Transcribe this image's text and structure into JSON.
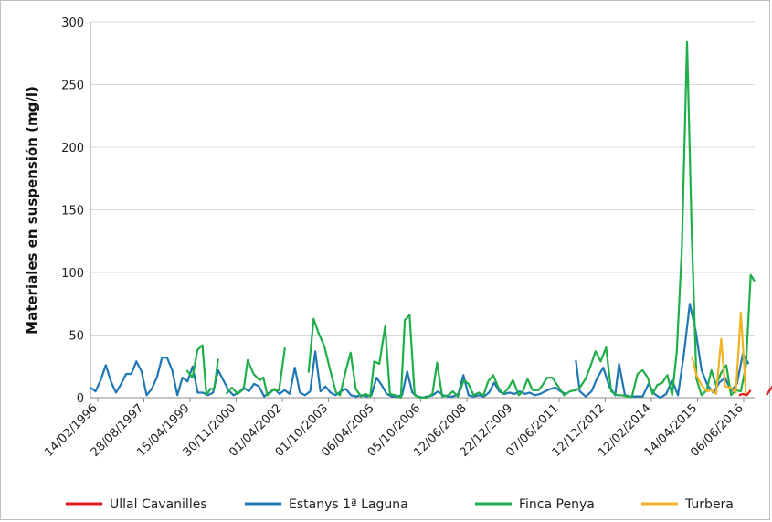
{
  "chart_data": {
    "type": "line",
    "title": "",
    "xlabel": "",
    "ylabel": "Materiales en suspensión (mg/l)",
    "ylim": [
      0,
      300
    ],
    "yticks": [
      0,
      50,
      100,
      150,
      200,
      250,
      300
    ],
    "grid": "horizontal",
    "legend_position": "bottom",
    "x_tick_labels": [
      "14/02/1996",
      "28/08/1997",
      "15/04/1999",
      "30/11/2000",
      "01/04/2002",
      "01/10/2003",
      "06/04/2005",
      "05/10/2006",
      "12/06/2008",
      "22/12/2009",
      "07/06/2011",
      "12/12/2012",
      "12/02/2014",
      "14/04/2015",
      "06/06/2016"
    ],
    "series": [
      {
        "name": "Ullal Cavanilles",
        "color": "#e31a1c",
        "segments": [
          [
            [
              16.5,
              2
            ],
            [
              16.6,
              3
            ],
            [
              16.7,
              2
            ],
            [
              16.8,
              6
            ]
          ],
          [
            [
              17.2,
              2
            ],
            [
              17.35,
              9
            ],
            [
              17.5,
              2
            ],
            [
              17.6,
              1
            ]
          ],
          [
            [
              17.95,
              1
            ],
            [
              18.1,
              9
            ],
            [
              18.25,
              3
            ],
            [
              18.35,
              1
            ]
          ],
          [
            [
              18.55,
              1
            ],
            [
              18.7,
              0
            ]
          ],
          [
            [
              19.35,
              5
            ],
            [
              19.55,
              6
            ],
            [
              19.7,
              9
            ],
            [
              19.85,
              7
            ],
            [
              19.95,
              8
            ],
            [
              20.05,
              16
            ],
            [
              20.15,
              3
            ],
            [
              20.3,
              8
            ],
            [
              20.45,
              12
            ],
            [
              20.6,
              21
            ]
          ]
        ]
      },
      {
        "name": "Estanys 1ª Laguna",
        "color": "#1f78b4",
        "segments": [
          [
            [
              0.0,
              8
            ],
            [
              0.13,
              5
            ],
            [
              0.26,
              14
            ],
            [
              0.39,
              26
            ],
            [
              0.52,
              13
            ],
            [
              0.65,
              4
            ],
            [
              0.78,
              11
            ],
            [
              0.91,
              19
            ],
            [
              1.04,
              19
            ],
            [
              1.17,
              29
            ],
            [
              1.3,
              21
            ],
            [
              1.43,
              2
            ],
            [
              1.56,
              7
            ],
            [
              1.69,
              16
            ],
            [
              1.82,
              32
            ],
            [
              1.95,
              32
            ],
            [
              2.08,
              22
            ],
            [
              2.21,
              2
            ],
            [
              2.34,
              16
            ],
            [
              2.47,
              13
            ],
            [
              2.6,
              25
            ],
            [
              2.73,
              4
            ],
            [
              2.86,
              4
            ],
            [
              2.99,
              2
            ],
            [
              3.12,
              4
            ],
            [
              3.25,
              22
            ],
            [
              3.38,
              14
            ],
            [
              3.51,
              6
            ],
            [
              3.64,
              2
            ],
            [
              3.77,
              4
            ],
            [
              3.9,
              8
            ],
            [
              4.03,
              5
            ],
            [
              4.16,
              11
            ],
            [
              4.29,
              9
            ],
            [
              4.42,
              1
            ],
            [
              4.55,
              4
            ],
            [
              4.68,
              7
            ],
            [
              4.81,
              3
            ],
            [
              4.94,
              6
            ],
            [
              5.07,
              3
            ],
            [
              5.2,
              24
            ],
            [
              5.33,
              4
            ],
            [
              5.46,
              2
            ],
            [
              5.59,
              5
            ],
            [
              5.72,
              37
            ],
            [
              5.85,
              5
            ],
            [
              5.98,
              9
            ],
            [
              6.11,
              4
            ],
            [
              6.24,
              2
            ],
            [
              6.37,
              5
            ],
            [
              6.5,
              7
            ],
            [
              6.63,
              2
            ],
            [
              6.76,
              1
            ],
            [
              6.89,
              2
            ],
            [
              7.02,
              1
            ],
            [
              7.15,
              2
            ],
            [
              7.28,
              16
            ],
            [
              7.41,
              10
            ],
            [
              7.54,
              3
            ],
            [
              7.67,
              1
            ],
            [
              7.8,
              1
            ],
            [
              7.93,
              2
            ],
            [
              8.06,
              21
            ],
            [
              8.19,
              4
            ],
            [
              8.32,
              1
            ],
            [
              8.45,
              0
            ],
            [
              8.58,
              1
            ],
            [
              8.71,
              2
            ],
            [
              8.84,
              5
            ],
            [
              8.97,
              2
            ],
            [
              9.1,
              1
            ],
            [
              9.23,
              1
            ],
            [
              9.36,
              3
            ],
            [
              9.49,
              18
            ],
            [
              9.62,
              2
            ],
            [
              9.75,
              1
            ],
            [
              9.88,
              2
            ],
            [
              10.01,
              1
            ],
            [
              10.14,
              4
            ],
            [
              10.27,
              12
            ],
            [
              10.4,
              5
            ],
            [
              10.53,
              3
            ],
            [
              10.66,
              4
            ],
            [
              10.79,
              3
            ],
            [
              10.92,
              5
            ],
            [
              11.05,
              3
            ],
            [
              11.18,
              4
            ],
            [
              11.31,
              2
            ],
            [
              11.44,
              3
            ],
            [
              11.57,
              5
            ],
            [
              11.7,
              7
            ],
            [
              11.83,
              8
            ],
            [
              11.96,
              5
            ],
            [
              12.09,
              3
            ]
          ],
          [
            [
              12.35,
              30
            ],
            [
              12.45,
              5
            ],
            [
              12.6,
              1
            ],
            [
              12.75,
              5
            ],
            [
              12.9,
              16
            ],
            [
              13.05,
              24
            ],
            [
              13.2,
              9
            ],
            [
              13.35,
              2
            ],
            [
              13.45,
              27
            ],
            [
              13.6,
              2
            ],
            [
              13.75,
              1
            ],
            [
              13.9,
              1
            ],
            [
              14.05,
              1
            ],
            [
              14.2,
              11
            ],
            [
              14.35,
              3
            ],
            [
              14.5,
              0
            ],
            [
              14.65,
              3
            ],
            [
              14.8,
              14
            ],
            [
              14.95,
              2
            ],
            [
              15.1,
              35
            ],
            [
              15.25,
              75
            ],
            [
              15.4,
              53
            ],
            [
              15.55,
              22
            ],
            [
              15.7,
              10
            ],
            [
              15.85,
              4
            ],
            [
              16.0,
              12
            ],
            [
              16.15,
              16
            ],
            [
              16.3,
              5
            ],
            [
              16.45,
              11
            ],
            [
              16.6,
              35
            ],
            [
              16.75,
              27
            ]
          ]
        ]
      },
      {
        "name": "Finca Penya",
        "color": "#1fae4a",
        "segments": [
          [
            [
              2.45,
              22
            ],
            [
              2.6,
              16
            ],
            [
              2.72,
              38
            ],
            [
              2.85,
              42
            ],
            [
              2.95,
              2
            ],
            [
              3.05,
              7
            ],
            [
              3.15,
              7
            ],
            [
              3.25,
              31
            ]
          ],
          [
            [
              3.45,
              3
            ],
            [
              3.6,
              8
            ],
            [
              3.75,
              3
            ],
            [
              3.9,
              7
            ],
            [
              4.0,
              30
            ],
            [
              4.15,
              19
            ],
            [
              4.3,
              14
            ],
            [
              4.4,
              16
            ],
            [
              4.5,
              2
            ],
            [
              4.65,
              6
            ],
            [
              4.8,
              6
            ],
            [
              4.95,
              40
            ]
          ],
          [
            [
              5.55,
              20
            ],
            [
              5.68,
              63
            ],
            [
              5.8,
              52
            ],
            [
              5.95,
              41
            ],
            [
              6.1,
              22
            ],
            [
              6.25,
              4
            ],
            [
              6.35,
              2
            ],
            [
              6.5,
              22
            ],
            [
              6.62,
              36
            ],
            [
              6.75,
              7
            ],
            [
              6.88,
              1
            ],
            [
              7.0,
              3
            ],
            [
              7.12,
              1
            ],
            [
              7.22,
              29
            ],
            [
              7.35,
              27
            ],
            [
              7.5,
              57
            ],
            [
              7.62,
              3
            ],
            [
              7.75,
              2
            ],
            [
              7.9,
              0
            ],
            [
              8.0,
              62
            ],
            [
              8.12,
              66
            ],
            [
              8.25,
              2
            ],
            [
              8.4,
              0
            ],
            [
              8.55,
              0
            ],
            [
              8.7,
              3
            ],
            [
              8.82,
              28
            ],
            [
              8.95,
              1
            ],
            [
              9.1,
              2
            ],
            [
              9.22,
              5
            ],
            [
              9.35,
              1
            ],
            [
              9.5,
              14
            ],
            [
              9.62,
              11
            ],
            [
              9.75,
              2
            ],
            [
              9.88,
              4
            ],
            [
              10.0,
              2
            ],
            [
              10.12,
              13
            ],
            [
              10.25,
              18
            ],
            [
              10.38,
              8
            ],
            [
              10.5,
              3
            ],
            [
              10.62,
              7
            ],
            [
              10.75,
              14
            ],
            [
              10.9,
              2
            ],
            [
              11.0,
              5
            ],
            [
              11.12,
              15
            ],
            [
              11.25,
              6
            ],
            [
              11.4,
              6
            ],
            [
              11.5,
              10
            ],
            [
              11.62,
              16
            ],
            [
              11.75,
              16
            ],
            [
              11.9,
              9
            ],
            [
              12.05,
              2
            ],
            [
              12.2,
              5
            ],
            [
              12.35,
              6
            ],
            [
              12.45,
              8
            ],
            [
              12.6,
              15
            ],
            [
              12.72,
              25
            ],
            [
              12.85,
              37
            ],
            [
              12.98,
              29
            ],
            [
              13.12,
              40
            ],
            [
              13.25,
              5
            ],
            [
              13.4,
              2
            ],
            [
              13.52,
              2
            ],
            [
              13.65,
              1
            ],
            [
              13.78,
              1
            ],
            [
              13.92,
              19
            ],
            [
              14.05,
              22
            ],
            [
              14.18,
              16
            ],
            [
              14.3,
              3
            ],
            [
              14.42,
              10
            ],
            [
              14.55,
              12
            ],
            [
              14.68,
              18
            ],
            [
              14.8,
              2
            ],
            [
              14.92,
              37
            ],
            [
              15.05,
              120
            ],
            [
              15.18,
              284
            ],
            [
              15.3,
              130
            ],
            [
              15.42,
              15
            ],
            [
              15.55,
              2
            ],
            [
              15.68,
              6
            ],
            [
              15.8,
              22
            ],
            [
              15.92,
              10
            ],
            [
              16.05,
              20
            ],
            [
              16.18,
              26
            ],
            [
              16.3,
              2
            ],
            [
              16.42,
              6
            ],
            [
              16.55,
              5
            ],
            [
              16.68,
              26
            ],
            [
              16.8,
              98
            ],
            [
              16.9,
              93
            ]
          ]
        ]
      },
      {
        "name": "Turbera",
        "color": "#f0b323",
        "segments": [
          [
            [
              15.3,
              33
            ],
            [
              15.42,
              18
            ],
            [
              15.55,
              10
            ],
            [
              15.68,
              5
            ],
            [
              15.8,
              6
            ],
            [
              15.92,
              3
            ],
            [
              16.05,
              47
            ],
            [
              16.15,
              9
            ],
            [
              16.3,
              8
            ],
            [
              16.42,
              4
            ],
            [
              16.55,
              68
            ],
            [
              16.68,
              2
            ]
          ]
        ]
      }
    ]
  }
}
